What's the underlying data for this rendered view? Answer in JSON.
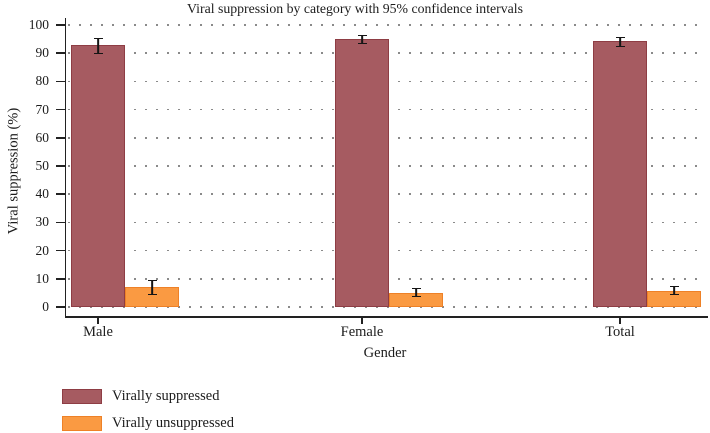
{
  "title": "Viral suppression by category with 95% confidence intervals",
  "chart_data": {
    "type": "bar",
    "title": "Viral suppression by category with 95% confidence intervals",
    "xlabel": "Gender",
    "ylabel": "Viral suppression (%)",
    "categories": [
      "Male",
      "Female",
      "Total"
    ],
    "series": [
      {
        "name": "Virally suppressed",
        "color": "#a65b61",
        "border_color": "#8e3d44",
        "values": [
          92.9,
          95.0,
          94.2
        ],
        "ci_low": [
          89.8,
          93.3,
          92.1
        ],
        "ci_high": [
          95.3,
          96.4,
          95.7
        ]
      },
      {
        "name": "Virally unsuppressed",
        "color": "#fa9a42",
        "border_color": "#ee8127",
        "values": [
          7.1,
          5.0,
          5.8
        ],
        "ci_low": [
          4.3,
          3.4,
          4.4
        ],
        "ci_high": [
          9.7,
          6.6,
          7.3
        ]
      }
    ],
    "ylim": [
      0,
      100
    ],
    "yticks": [
      0,
      10,
      20,
      30,
      40,
      50,
      60,
      70,
      80,
      90,
      100
    ],
    "grid": "dotted horizontal gridlines",
    "error_bars": "95% confidence intervals",
    "legend_position": "bottom-left"
  },
  "legend": {
    "items": [
      {
        "label": "Virally suppressed"
      },
      {
        "label": "Virally unsuppressed"
      }
    ]
  }
}
